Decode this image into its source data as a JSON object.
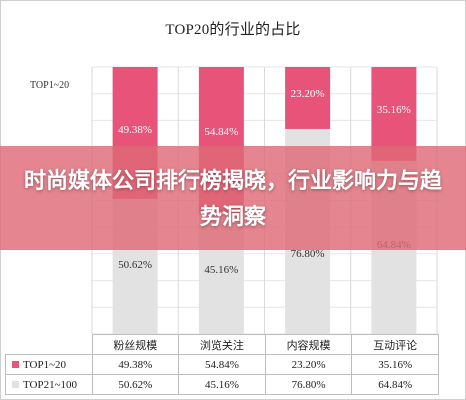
{
  "overlay": {
    "headline": "时尚媒体公司排行榜揭晓，行业影响力与趋势洞察"
  },
  "chart_data": {
    "type": "bar",
    "stacked": true,
    "percent": true,
    "title": "TOP20的行业的占比",
    "categories": [
      "粉丝规模",
      "浏览关注",
      "内容规模",
      "互动评论"
    ],
    "series": [
      {
        "name": "TOP1~20",
        "values": [
          49.38,
          54.84,
          23.2,
          35.16
        ],
        "labels": [
          "49.38%",
          "54.84%",
          "23.20%",
          "35.16%"
        ],
        "color": "#e8537a"
      },
      {
        "name": "TOP21~100",
        "values": [
          50.62,
          45.16,
          76.8,
          64.84
        ],
        "labels": [
          "50.62%",
          "45.16%",
          "76.80%",
          "64.84%"
        ],
        "color": "#e2e2e2"
      }
    ],
    "ylim": [
      0,
      100
    ],
    "legend": "table-below",
    "grid": true
  },
  "table": {
    "columns": [
      "粉丝规模",
      "浏览关注",
      "内容规模",
      "互动评论"
    ],
    "rows": [
      {
        "label": "TOP1~20",
        "color": "#e8537a",
        "cells": [
          "49.38%",
          "54.84%",
          "23.20%",
          "35.16%"
        ]
      },
      {
        "label": "TOP21~100",
        "color": "#e2e2e2",
        "cells": [
          "50.62%",
          "45.16%",
          "76.80%",
          "64.84%"
        ]
      }
    ]
  }
}
